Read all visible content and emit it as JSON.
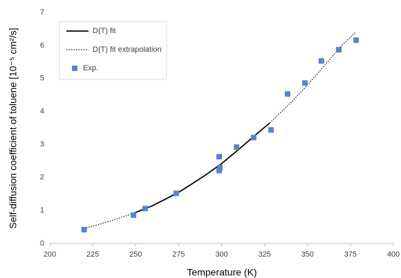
{
  "chart_data": {
    "type": "scatter-line",
    "x_label": "Temperature (K)",
    "y_label": "Self-diffusion coefficient of toluene [10⁻⁵ cm²/s]",
    "xlim": [
      200,
      400
    ],
    "xticks": [
      200,
      225,
      250,
      275,
      300,
      325,
      350,
      375,
      400
    ],
    "ylim": [
      0,
      7
    ],
    "yticks": [
      0,
      1,
      2,
      3,
      4,
      5,
      6,
      7
    ],
    "grid": false,
    "legend": "upper-left",
    "series": [
      {
        "name": "D(T) fit",
        "kind": "line",
        "dash": "solid",
        "color": "#000000",
        "x": [
          248,
          260,
          275,
          290,
          300,
          310,
          320,
          328
        ],
        "values": [
          0.9,
          1.15,
          1.55,
          2.05,
          2.42,
          2.85,
          3.3,
          3.65
        ]
      },
      {
        "name": "D(T) fit extrapolation",
        "kind": "line",
        "dash": "dotted",
        "color": "#000000",
        "x": [
          220,
          235,
          248,
          288,
          328,
          340,
          350,
          360,
          370,
          378
        ],
        "values": [
          0.45,
          0.68,
          0.9,
          null,
          3.65,
          4.25,
          4.8,
          5.4,
          6.0,
          6.4
        ]
      },
      {
        "name": "Exp.",
        "kind": "scatter",
        "color": "#5b84c8",
        "x": [
          220,
          248.7,
          255.5,
          273.6,
          298.6,
          299,
          298.6,
          308.7,
          318.7,
          328.8,
          338.4,
          348.5,
          358.1,
          368.2,
          378.3
        ],
        "values": [
          0.42,
          0.86,
          1.06,
          1.52,
          2.63,
          2.3,
          2.21,
          2.92,
          3.21,
          3.44,
          4.53,
          4.86,
          5.53,
          5.87,
          6.16
        ]
      }
    ]
  }
}
